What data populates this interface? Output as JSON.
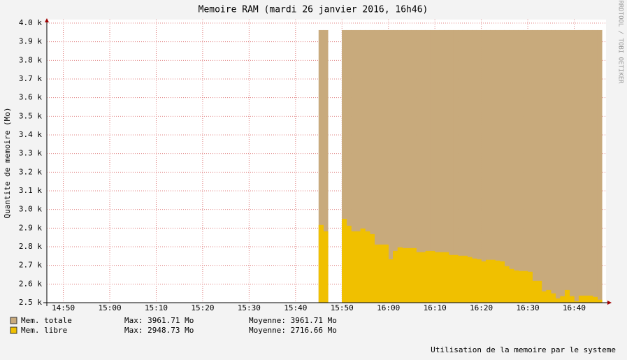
{
  "chart_data": {
    "type": "step-area",
    "title": "Memoire RAM (mardi 26 janvier 2016, 16h46)",
    "y_label": "Quantite de memoire (Mo)",
    "footer": "Utilisation de la memoire par le systeme",
    "watermark": "RRDTOOL / TOBI OETIKER",
    "xlim": [
      "14:46",
      "16:47"
    ],
    "xticks": [
      "14:50",
      "15:00",
      "15:10",
      "15:20",
      "15:30",
      "15:40",
      "15:50",
      "16:00",
      "16:10",
      "16:20",
      "16:30",
      "16:40"
    ],
    "ylim": [
      2500,
      4000
    ],
    "yticks": [
      {
        "value": 2500,
        "label": "2.5 k"
      },
      {
        "value": 2600,
        "label": "2.6 k"
      },
      {
        "value": 2700,
        "label": "2.7 k"
      },
      {
        "value": 2800,
        "label": "2.8 k"
      },
      {
        "value": 2900,
        "label": "2.9 k"
      },
      {
        "value": 3000,
        "label": "3.0 k"
      },
      {
        "value": 3100,
        "label": "3.1 k"
      },
      {
        "value": 3200,
        "label": "3.2 k"
      },
      {
        "value": 3300,
        "label": "3.3 k"
      },
      {
        "value": 3400,
        "label": "3.4 k"
      },
      {
        "value": 3500,
        "label": "3.5 k"
      },
      {
        "value": 3600,
        "label": "3.6 k"
      },
      {
        "value": 3700,
        "label": "3.7 k"
      },
      {
        "value": 3800,
        "label": "3.8 k"
      },
      {
        "value": 3900,
        "label": "3.9 k"
      },
      {
        "value": 4000,
        "label": "4.0 k"
      }
    ],
    "grid": true,
    "x": [
      "15:45",
      "15:46",
      "15:47",
      "15:48",
      "15:49",
      "15:50",
      "15:51",
      "15:52",
      "15:53",
      "15:54",
      "15:55",
      "15:56",
      "15:57",
      "15:58",
      "15:59",
      "16:00",
      "16:01",
      "16:02",
      "16:03",
      "16:04",
      "16:05",
      "16:06",
      "16:07",
      "16:08",
      "16:09",
      "16:10",
      "16:11",
      "16:12",
      "16:13",
      "16:14",
      "16:15",
      "16:16",
      "16:17",
      "16:18",
      "16:19",
      "16:20",
      "16:21",
      "16:22",
      "16:23",
      "16:24",
      "16:25",
      "16:26",
      "16:27",
      "16:28",
      "16:29",
      "16:30",
      "16:31",
      "16:32",
      "16:33",
      "16:34",
      "16:35",
      "16:36",
      "16:37",
      "16:38",
      "16:39",
      "16:40",
      "16:41",
      "16:42",
      "16:43",
      "16:44",
      "16:45"
    ],
    "series": [
      {
        "name": "Mem. totale",
        "color": "#c8aa7c",
        "max_text": "Max: 3961.71 Mo",
        "avg_text": "Moyenne: 3961.71 Mo",
        "values": [
          3961.71,
          3961.71,
          null,
          null,
          null,
          3961.71,
          3961.71,
          3961.71,
          3961.71,
          3961.71,
          3961.71,
          3961.71,
          3961.71,
          3961.71,
          3961.71,
          3961.71,
          3961.71,
          3961.71,
          3961.71,
          3961.71,
          3961.71,
          3961.71,
          3961.71,
          3961.71,
          3961.71,
          3961.71,
          3961.71,
          3961.71,
          3961.71,
          3961.71,
          3961.71,
          3961.71,
          3961.71,
          3961.71,
          3961.71,
          3961.71,
          3961.71,
          3961.71,
          3961.71,
          3961.71,
          3961.71,
          3961.71,
          3961.71,
          3961.71,
          3961.71,
          3961.71,
          3961.71,
          3961.71,
          3961.71,
          3961.71,
          3961.71,
          3961.71,
          3961.71,
          3961.71,
          3961.71,
          3961.71,
          3961.71,
          3961.71,
          3961.71,
          3961.71,
          3961.71
        ]
      },
      {
        "name": "Mem. libre",
        "color": "#f0c000",
        "max_text": "Max: 2948.73 Mo",
        "avg_text": "Moyenne: 2716.66 Mo",
        "values": [
          2916,
          2882,
          null,
          null,
          null,
          2948.73,
          2912,
          2882,
          2882,
          2897,
          2882,
          2867,
          2811,
          2811,
          2811,
          2732,
          2777,
          2796,
          2792,
          2792,
          2792,
          2770,
          2770,
          2777,
          2777,
          2770,
          2770,
          2770,
          2755,
          2755,
          2751,
          2751,
          2744,
          2736,
          2732,
          2721,
          2729,
          2729,
          2725,
          2721,
          2695,
          2680,
          2672,
          2669,
          2669,
          2665,
          2616,
          2616,
          2560,
          2567,
          2549,
          2522,
          2534,
          2567,
          2534,
          2507,
          2537,
          2537,
          2537,
          2530,
          2515
        ]
      }
    ]
  }
}
